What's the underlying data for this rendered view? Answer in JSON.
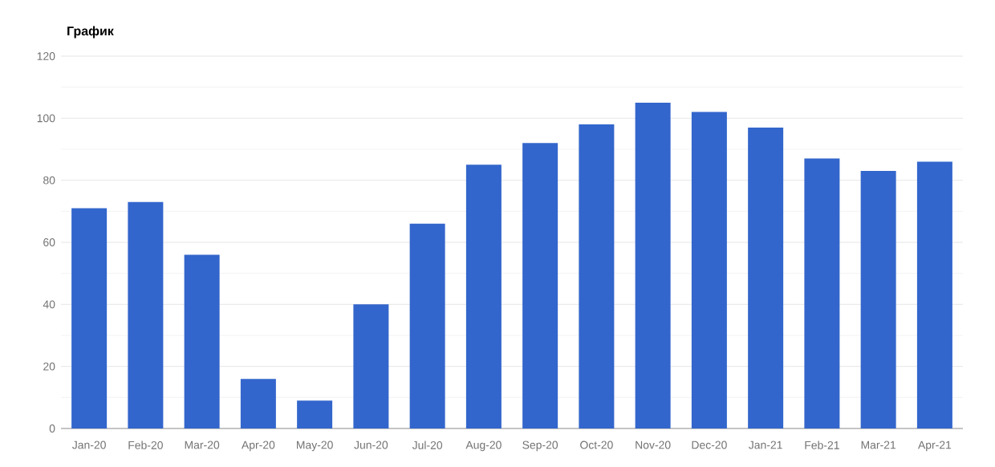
{
  "chart_data": {
    "type": "bar",
    "title": "График",
    "categories": [
      "Jan-20",
      "Feb-20",
      "Mar-20",
      "Apr-20",
      "May-20",
      "Jun-20",
      "Jul-20",
      "Aug-20",
      "Sep-20",
      "Oct-20",
      "Nov-20",
      "Dec-20",
      "Jan-21",
      "Feb-21",
      "Mar-21",
      "Apr-21"
    ],
    "values": [
      71,
      73,
      56,
      16,
      9,
      40,
      66,
      85,
      92,
      98,
      105,
      102,
      97,
      87,
      83,
      86
    ],
    "color": "#3366cc",
    "ylim": [
      0,
      120
    ],
    "yticks": [
      0,
      20,
      40,
      60,
      80,
      100,
      120
    ],
    "grid": "y"
  }
}
